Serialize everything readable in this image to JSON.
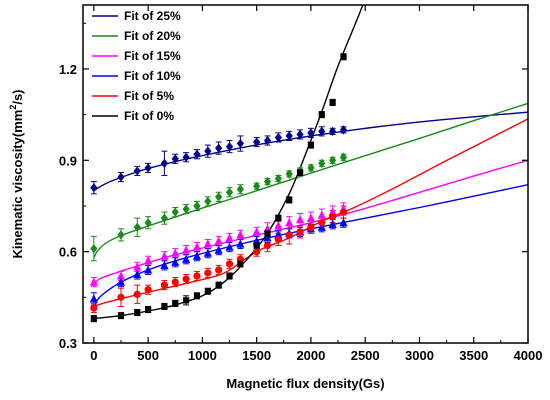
{
  "chart_data": {
    "type": "scatter",
    "title": "",
    "xlabel": "Magnetic flux density(Gs)",
    "ylabel_main": "Kinematic viscosity(mm",
    "ylabel_sup": "2",
    "ylabel_tail": "/s)",
    "xlim": [
      -100,
      4000
    ],
    "ylim": [
      0.3,
      1.41
    ],
    "x_ticks": [
      0,
      500,
      1000,
      1500,
      2000,
      2500,
      3000,
      3500,
      4000
    ],
    "y_ticks": [
      0.3,
      0.6,
      0.9,
      1.2
    ],
    "y_tick_labels": [
      "0.3",
      "0.6",
      "0.9",
      "1.2"
    ],
    "grid": false,
    "legend_position": "top-left",
    "series": [
      {
        "name": "Fit of 25%",
        "color": "#00008b",
        "marker": "diamond",
        "x": [
          0,
          250,
          400,
          500,
          650,
          750,
          850,
          950,
          1050,
          1150,
          1250,
          1350,
          1500,
          1600,
          1700,
          1800,
          1900,
          2000,
          2100,
          2200,
          2300
        ],
        "y": [
          0.81,
          0.845,
          0.865,
          0.875,
          0.89,
          0.905,
          0.91,
          0.92,
          0.93,
          0.94,
          0.945,
          0.955,
          0.96,
          0.965,
          0.975,
          0.98,
          0.985,
          0.99,
          0.995,
          0.995,
          1.0
        ],
        "err": [
          0.02,
          0.015,
          0.015,
          0.015,
          0.04,
          0.015,
          0.015,
          0.015,
          0.02,
          0.02,
          0.02,
          0.025,
          0.015,
          0.015,
          0.015,
          0.015,
          0.015,
          0.015,
          0.015,
          0.01,
          0.01
        ],
        "fit_x": [
          0,
          50,
          150,
          300,
          500,
          800,
          1200,
          1600,
          2000,
          2400,
          2800,
          3200,
          3600,
          4000
        ],
        "fit_y": [
          0.8,
          0.812,
          0.83,
          0.85,
          0.873,
          0.9,
          0.93,
          0.957,
          0.98,
          1.0,
          1.018,
          1.033,
          1.046,
          1.058
        ]
      },
      {
        "name": "Fit of 20%",
        "color": "#1a8a1a",
        "marker": "diamond",
        "x": [
          0,
          250,
          400,
          500,
          650,
          750,
          850,
          950,
          1050,
          1150,
          1250,
          1350,
          1500,
          1600,
          1700,
          1800,
          1900,
          2000,
          2100,
          2200,
          2300
        ],
        "y": [
          0.61,
          0.655,
          0.68,
          0.695,
          0.71,
          0.73,
          0.74,
          0.75,
          0.765,
          0.78,
          0.795,
          0.805,
          0.815,
          0.83,
          0.84,
          0.855,
          0.865,
          0.875,
          0.89,
          0.9,
          0.91
        ],
        "err": [
          0.04,
          0.02,
          0.03,
          0.02,
          0.02,
          0.015,
          0.015,
          0.015,
          0.015,
          0.015,
          0.015,
          0.015,
          0.01,
          0.01,
          0.01,
          0.01,
          0.01,
          0.01,
          0.01,
          0.01,
          0.01
        ],
        "fit_x": [
          0,
          30,
          100,
          200,
          400,
          700,
          1000,
          1500,
          2000,
          2500,
          3000,
          3500,
          4000
        ],
        "fit_y": [
          0.58,
          0.6,
          0.625,
          0.645,
          0.672,
          0.708,
          0.743,
          0.8,
          0.858,
          0.915,
          0.972,
          1.03,
          1.087
        ]
      },
      {
        "name": "Fit of 15%",
        "color": "#ff00ff",
        "marker": "triangle",
        "x": [
          0,
          250,
          400,
          500,
          650,
          750,
          850,
          950,
          1050,
          1150,
          1250,
          1350,
          1500,
          1600,
          1700,
          1800,
          1900,
          2000,
          2100,
          2200,
          2300
        ],
        "y": [
          0.5,
          0.52,
          0.55,
          0.57,
          0.585,
          0.595,
          0.605,
          0.615,
          0.625,
          0.635,
          0.645,
          0.655,
          0.665,
          0.675,
          0.685,
          0.695,
          0.705,
          0.71,
          0.72,
          0.73,
          0.74
        ],
        "err": [
          0.015,
          0.015,
          0.015,
          0.015,
          0.015,
          0.015,
          0.015,
          0.015,
          0.015,
          0.015,
          0.015,
          0.015,
          0.015,
          0.02,
          0.02,
          0.02,
          0.02,
          0.02,
          0.02,
          0.02,
          0.02
        ],
        "fit_x": [
          0,
          50,
          200,
          400,
          700,
          1000,
          1500,
          2000,
          2500,
          3000,
          3500,
          4000
        ],
        "fit_y": [
          0.49,
          0.51,
          0.53,
          0.553,
          0.585,
          0.612,
          0.654,
          0.695,
          0.742,
          0.795,
          0.848,
          0.9
        ]
      },
      {
        "name": "Fit of 10%",
        "color": "#0000ff",
        "marker": "triangle",
        "x": [
          0,
          250,
          400,
          500,
          650,
          750,
          850,
          950,
          1050,
          1150,
          1250,
          1350,
          1500,
          1600,
          1700,
          1800,
          1900,
          2000,
          2100,
          2200,
          2300
        ],
        "y": [
          0.445,
          0.5,
          0.525,
          0.54,
          0.555,
          0.565,
          0.575,
          0.585,
          0.595,
          0.605,
          0.615,
          0.625,
          0.635,
          0.645,
          0.655,
          0.66,
          0.665,
          0.675,
          0.68,
          0.69,
          0.695
        ],
        "err": [
          0.02,
          0.015,
          0.015,
          0.015,
          0.015,
          0.015,
          0.015,
          0.015,
          0.015,
          0.015,
          0.015,
          0.015,
          0.015,
          0.015,
          0.015,
          0.015,
          0.015,
          0.015,
          0.015,
          0.015,
          0.015
        ],
        "fit_x": [
          0,
          30,
          100,
          250,
          500,
          800,
          1200,
          1600,
          2000,
          2500,
          3000,
          3500,
          4000
        ],
        "fit_y": [
          0.41,
          0.44,
          0.465,
          0.5,
          0.54,
          0.575,
          0.612,
          0.645,
          0.675,
          0.71,
          0.745,
          0.782,
          0.82
        ]
      },
      {
        "name": "Fit of 5%",
        "color": "#ff0000",
        "marker": "circle",
        "x": [
          0,
          250,
          400,
          500,
          650,
          750,
          850,
          950,
          1050,
          1150,
          1250,
          1350,
          1500,
          1600,
          1700,
          1800,
          1900,
          2000,
          2100,
          2200,
          2300
        ],
        "y": [
          0.415,
          0.45,
          0.46,
          0.475,
          0.49,
          0.5,
          0.51,
          0.52,
          0.53,
          0.54,
          0.56,
          0.575,
          0.6,
          0.62,
          0.64,
          0.655,
          0.665,
          0.68,
          0.695,
          0.715,
          0.73
        ],
        "err": [
          0.015,
          0.03,
          0.03,
          0.015,
          0.015,
          0.015,
          0.015,
          0.015,
          0.015,
          0.015,
          0.015,
          0.015,
          0.015,
          0.02,
          0.02,
          0.03,
          0.02,
          0.02,
          0.02,
          0.02,
          0.02
        ],
        "fit_x": [
          0,
          100,
          300,
          600,
          900,
          1200,
          1500,
          1800,
          2100,
          2400,
          2800,
          3200,
          3600,
          4000
        ],
        "fit_y": [
          0.42,
          0.432,
          0.45,
          0.475,
          0.5,
          0.53,
          0.6,
          0.645,
          0.7,
          0.745,
          0.815,
          0.89,
          0.963,
          1.036
        ]
      },
      {
        "name": "Fit of 0%",
        "color": "#000000",
        "marker": "square",
        "x": [
          0,
          250,
          400,
          500,
          650,
          750,
          850,
          950,
          1050,
          1150,
          1250,
          1350,
          1500,
          1600,
          1700,
          1800,
          1900,
          2000,
          2100,
          2200,
          2300
        ],
        "y": [
          0.38,
          0.39,
          0.4,
          0.41,
          0.42,
          0.43,
          0.44,
          0.455,
          0.47,
          0.49,
          0.52,
          0.56,
          0.62,
          0.66,
          0.71,
          0.77,
          0.86,
          0.95,
          1.05,
          1.09,
          1.24
        ],
        "err": [
          0.01,
          0.01,
          0.01,
          0.01,
          0.01,
          0.01,
          0.015,
          0.01,
          0.01,
          0.01,
          0.01,
          0.01,
          0.01,
          0.01,
          0.01,
          0.01,
          0.01,
          0.01,
          0.01,
          0.01,
          0.01
        ],
        "fit_x": [
          0,
          250,
          500,
          750,
          1000,
          1200,
          1400,
          1600,
          1800,
          1950,
          2100,
          2250,
          2400,
          2500
        ],
        "fit_y": [
          0.38,
          0.39,
          0.405,
          0.425,
          0.455,
          0.5,
          0.57,
          0.66,
          0.79,
          0.92,
          1.06,
          1.21,
          1.34,
          1.43
        ]
      }
    ]
  }
}
